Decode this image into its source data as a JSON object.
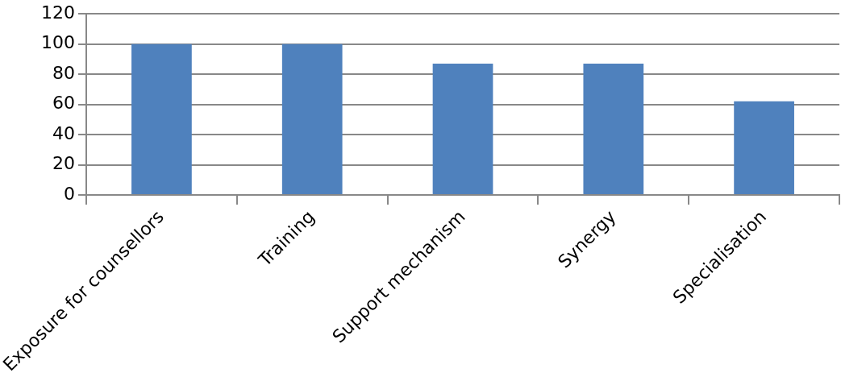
{
  "chart_data": {
    "type": "bar",
    "categories": [
      "Exposure for counsellors",
      "Training",
      "Support mechanism",
      "Synergy",
      "Specialisation"
    ],
    "values": [
      100,
      100,
      87,
      87,
      62
    ],
    "color": "#4f81bd",
    "ylim": [
      0,
      120
    ],
    "yticks": [
      0,
      20,
      40,
      60,
      80,
      100,
      120
    ],
    "grid": "y",
    "legend": false
  }
}
